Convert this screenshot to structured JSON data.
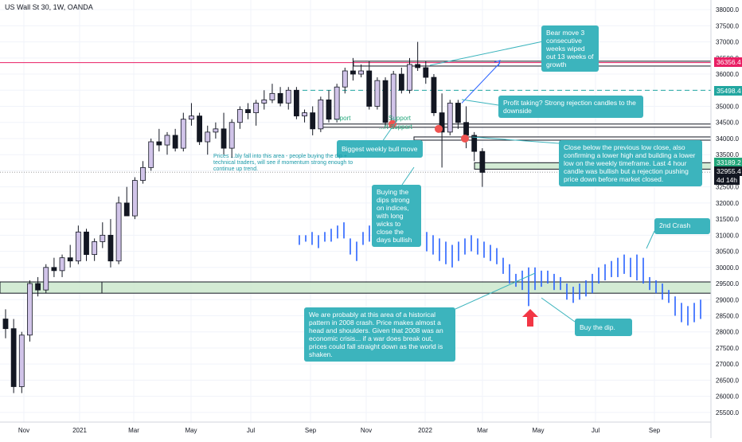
{
  "header": {
    "title": "US Wall St 30, 1W, OANDA"
  },
  "chart_data": {
    "type": "candlestick",
    "symbol": "US Wall St 30",
    "timeframe": "1W",
    "broker": "OANDA",
    "y_ticks": [
      25500,
      26000,
      26500,
      27000,
      27500,
      28000,
      28500,
      29000,
      29500,
      30000,
      30500,
      31000,
      31500,
      32000,
      32500,
      33000,
      33500,
      34000,
      34500,
      35000,
      35500,
      36000,
      36500,
      37000,
      37500,
      38000
    ],
    "ylim": [
      25200,
      38300
    ],
    "x_ticks": [
      "Nov",
      "2021",
      "Mar",
      "May",
      "Jul",
      "Sep",
      "Nov",
      "2022",
      "Mar",
      "May",
      "Jul",
      "Sep"
    ],
    "price_labels": [
      {
        "value": 36356.4,
        "text": "36356.4",
        "color": "#e91e63"
      },
      {
        "value": 35498.4,
        "text": "35498.4",
        "color": "#22a6a0"
      },
      {
        "value": 33189.2,
        "text": "33189.2",
        "color": "#22a67a"
      },
      {
        "value": 32955.4,
        "text": "32955.4",
        "color": "#131722"
      }
    ],
    "countdown": "4d 14h",
    "levels": [
      {
        "name": "resistance",
        "value": 36356.4,
        "color": "#e91e63"
      },
      {
        "name": "dashed-resistance",
        "value": 35498.4,
        "color": "#22a6a0"
      },
      {
        "name": "current-dotted",
        "value": 32955.4,
        "color": "#9e9e9e"
      }
    ],
    "candles": [
      [
        28400,
        28700,
        27800,
        28100
      ],
      [
        28100,
        28400,
        26100,
        26300
      ],
      [
        26300,
        28000,
        26100,
        27900
      ],
      [
        27900,
        29600,
        27700,
        29500
      ],
      [
        29500,
        29700,
        29100,
        29300
      ],
      [
        29300,
        30100,
        29200,
        30000
      ],
      [
        30000,
        30300,
        29700,
        29900
      ],
      [
        29900,
        30400,
        29700,
        30300
      ],
      [
        30300,
        30700,
        30000,
        30200
      ],
      [
        30200,
        31300,
        30100,
        31100
      ],
      [
        31100,
        31200,
        30200,
        30400
      ],
      [
        30400,
        30900,
        30200,
        30800
      ],
      [
        30800,
        31400,
        30600,
        31000
      ],
      [
        31000,
        31500,
        30000,
        30200
      ],
      [
        30200,
        32200,
        30100,
        32000
      ],
      [
        32000,
        32500,
        31600,
        31600
      ],
      [
        31600,
        32800,
        31500,
        32700
      ],
      [
        32700,
        33300,
        32600,
        33100
      ],
      [
        33100,
        34000,
        33000,
        33900
      ],
      [
        33900,
        34300,
        33600,
        33800
      ],
      [
        33800,
        34200,
        33500,
        34100
      ],
      [
        34100,
        34300,
        33600,
        33700
      ],
      [
        33700,
        34800,
        33600,
        34600
      ],
      [
        34600,
        35100,
        34400,
        34700
      ],
      [
        34700,
        34800,
        33800,
        33900
      ],
      [
        33900,
        34400,
        33500,
        34200
      ],
      [
        34200,
        34500,
        34000,
        34300
      ],
      [
        34300,
        34800,
        33500,
        33700
      ],
      [
        33700,
        34600,
        33400,
        34500
      ],
      [
        34500,
        35000,
        34300,
        34900
      ],
      [
        34900,
        35100,
        34600,
        34800
      ],
      [
        34800,
        35200,
        34400,
        35100
      ],
      [
        35100,
        35500,
        34900,
        35200
      ],
      [
        35200,
        35700,
        35100,
        35400
      ],
      [
        35400,
        35600,
        35000,
        35100
      ],
      [
        35100,
        35600,
        34900,
        35500
      ],
      [
        35500,
        35600,
        34600,
        34700
      ],
      [
        34700,
        34900,
        34500,
        34800
      ],
      [
        34800,
        35000,
        34100,
        34300
      ],
      [
        34300,
        35300,
        34200,
        35200
      ],
      [
        35200,
        35500,
        34500,
        34600
      ],
      [
        34600,
        35700,
        34500,
        35600
      ],
      [
        35600,
        36200,
        35400,
        36100
      ],
      [
        36100,
        36500,
        35800,
        36000
      ],
      [
        36000,
        36300,
        35900,
        36100
      ],
      [
        36100,
        36400,
        34900,
        35000
      ],
      [
        35000,
        35900,
        34900,
        35800
      ],
      [
        35800,
        35900,
        34400,
        34500
      ],
      [
        34500,
        36100,
        34300,
        36000
      ],
      [
        36000,
        36200,
        35400,
        35500
      ],
      [
        35500,
        36500,
        35400,
        36300
      ],
      [
        36300,
        37000,
        36100,
        36200
      ],
      [
        36200,
        36400,
        35700,
        35900
      ],
      [
        35900,
        36000,
        34700,
        34800
      ],
      [
        34800,
        35400,
        33100,
        34200
      ],
      [
        34200,
        35200,
        34100,
        35100
      ],
      [
        35100,
        35200,
        34300,
        34500
      ],
      [
        34500,
        35000,
        33700,
        34100
      ],
      [
        34100,
        34200,
        33300,
        33600
      ],
      [
        33600,
        33700,
        32500,
        32950
      ]
    ],
    "zones": [
      {
        "name": "support-box-upper",
        "top": 36400,
        "bottom": 36250
      },
      {
        "name": "support-box-mid",
        "top": 34450,
        "bottom": 34350
      },
      {
        "name": "support-box-low",
        "top": 34050,
        "bottom": 33950
      },
      {
        "name": "green-zone-right",
        "top": 33250,
        "bottom": 33050
      },
      {
        "name": "green-zone-2008",
        "top": 29550,
        "bottom": 29200
      }
    ],
    "annotations": {
      "bear_move": "Bear move 3 consecutive weeks wiped out 13 weeks of growth",
      "profit_taking": "Profit taking? Strong rejection candles to the downside",
      "biggest_bull": "Biggest weekly bull move",
      "close_below": "Close below the previous low close, also confirming a lower high and building a lower low on the weekly timeframe.  Last 4 hour candle was bullish but a rejection pushing price down before market closed.",
      "buying_dips": "Buying the dips strong on indices, with long wicks to close the days bullish",
      "second_crash": "2nd Crash",
      "historical": "We are probably at this area of a historical pattern in 2008 crash. Price makes almost a head and shoulders. Given that 2008 was an economic crisis... if a war does break out, prices could fall straight down as the world is shaken.",
      "buy_dip": "Buy the dip.",
      "prices_note": "Prices ...bly fall into this area - people buying the dip + technical traders, will see if momentum strong enough to continue up trend.",
      "support_label_1": "Support",
      "support_label_2": "...rt Support",
      "support_label_3": "...port"
    },
    "projection_bars": [
      [
        31000,
        30700
      ],
      [
        31000,
        30800
      ],
      [
        31100,
        30700
      ],
      [
        31000,
        30600
      ],
      [
        31100,
        30800
      ],
      [
        31200,
        30800
      ],
      [
        31300,
        30900
      ],
      [
        31400,
        30900
      ],
      [
        30900,
        30400
      ],
      [
        30800,
        30200
      ],
      [
        31100,
        30700
      ],
      [
        31300,
        30800
      ],
      [
        31400,
        31000
      ],
      [
        31300,
        30800
      ],
      [
        31200,
        30700
      ],
      [
        31300,
        30900
      ],
      [
        31400,
        31000
      ],
      [
        31500,
        31000
      ],
      [
        31400,
        30900
      ],
      [
        31300,
        30800
      ],
      [
        31100,
        30500
      ],
      [
        31000,
        30400
      ],
      [
        30900,
        30200
      ],
      [
        30800,
        30100
      ],
      [
        30700,
        30000
      ],
      [
        30800,
        30200
      ],
      [
        30900,
        30400
      ],
      [
        31000,
        30500
      ],
      [
        30900,
        30400
      ],
      [
        30800,
        30300
      ],
      [
        30700,
        30200
      ],
      [
        30600,
        30100
      ],
      [
        30300,
        29800
      ],
      [
        30100,
        29500
      ],
      [
        29800,
        29400
      ],
      [
        29900,
        29300
      ],
      [
        30000,
        28800
      ],
      [
        30000,
        29300
      ],
      [
        29900,
        29400
      ],
      [
        29900,
        29500
      ],
      [
        29800,
        29300
      ],
      [
        29700,
        29300
      ],
      [
        29500,
        29000
      ],
      [
        29400,
        28900
      ],
      [
        29500,
        29000
      ],
      [
        29600,
        29100
      ],
      [
        29800,
        29200
      ],
      [
        30000,
        29500
      ],
      [
        30100,
        29600
      ],
      [
        30200,
        29700
      ],
      [
        30300,
        29700
      ],
      [
        30400,
        29800
      ],
      [
        30300,
        29700
      ],
      [
        30400,
        29600
      ],
      [
        30300,
        29500
      ],
      [
        29700,
        29300
      ],
      [
        29600,
        29200
      ],
      [
        29500,
        29000
      ],
      [
        29300,
        28900
      ],
      [
        29100,
        28500
      ],
      [
        28900,
        28300
      ],
      [
        28800,
        28200
      ],
      [
        28900,
        28300
      ],
      [
        29000,
        28400
      ]
    ]
  }
}
